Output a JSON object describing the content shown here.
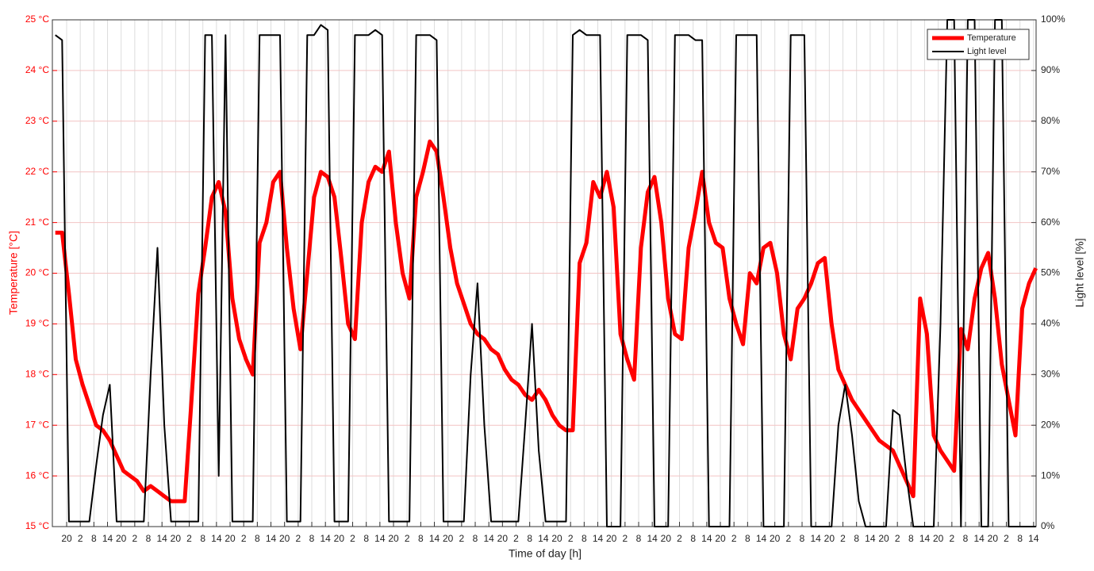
{
  "chart_data": {
    "type": "line",
    "x_label": "Time of day [h]",
    "y_label": "Temperature [°C]",
    "y2_label": "Light level [%]",
    "x": [
      15,
      18,
      21,
      24,
      27,
      30,
      33,
      36,
      39,
      42,
      45,
      48,
      51,
      54,
      57,
      60,
      63,
      66,
      69,
      72,
      75,
      78,
      81,
      84,
      87,
      90,
      93,
      96,
      99,
      102,
      105,
      108,
      111,
      114,
      117,
      120,
      123,
      126,
      129,
      132,
      135,
      138,
      141,
      144,
      147,
      150,
      153,
      156,
      159,
      162,
      165,
      168,
      171,
      174,
      177,
      180,
      183,
      186,
      189,
      192,
      195,
      198,
      201,
      204,
      207,
      210,
      213,
      216,
      219,
      222,
      225,
      228,
      231,
      234,
      237,
      240,
      243,
      246,
      249,
      252,
      255,
      258,
      261,
      264,
      267,
      270,
      273,
      276,
      279,
      282,
      285,
      288,
      291,
      294,
      297,
      300,
      303,
      306,
      309,
      312,
      315,
      318,
      321,
      324,
      327,
      330,
      333,
      336,
      339,
      342,
      345,
      348,
      351,
      354,
      357,
      360,
      363,
      366,
      369,
      372,
      375,
      378,
      381,
      384,
      387,
      390,
      393,
      396,
      399,
      402,
      405,
      408,
      411,
      414,
      417,
      420,
      423,
      426,
      429,
      432,
      435,
      438,
      441,
      444,
      447
    ],
    "series": [
      {
        "name": "Temperature",
        "color": "#ff0000",
        "axis": "y",
        "values": [
          20.8,
          20.8,
          19.6,
          18.3,
          17.8,
          17.4,
          17.0,
          16.9,
          16.7,
          16.4,
          16.1,
          16.0,
          15.9,
          15.7,
          15.8,
          15.7,
          15.6,
          15.5,
          15.5,
          15.5,
          17.5,
          19.6,
          20.5,
          21.5,
          21.8,
          21.2,
          19.5,
          18.7,
          18.3,
          18.0,
          20.6,
          21.0,
          21.8,
          22.0,
          20.5,
          19.3,
          18.5,
          20.0,
          21.5,
          22.0,
          21.9,
          21.5,
          20.3,
          19.0,
          18.7,
          21.0,
          21.8,
          22.1,
          22.0,
          22.4,
          21.0,
          20.0,
          19.5,
          21.5,
          22.0,
          22.6,
          22.4,
          21.5,
          20.5,
          19.8,
          19.4,
          19.0,
          18.8,
          18.7,
          18.5,
          18.4,
          18.1,
          17.9,
          17.8,
          17.6,
          17.5,
          17.7,
          17.5,
          17.2,
          17.0,
          16.9,
          16.9,
          20.2,
          20.6,
          21.8,
          21.5,
          22.0,
          21.3,
          18.8,
          18.3,
          17.9,
          20.5,
          21.6,
          21.9,
          21.0,
          19.5,
          18.8,
          18.7,
          20.5,
          21.2,
          22.0,
          21.0,
          20.6,
          20.5,
          19.5,
          19.0,
          18.6,
          20.0,
          19.8,
          20.5,
          20.6,
          20.0,
          18.8,
          18.3,
          19.3,
          19.5,
          19.8,
          20.2,
          20.3,
          19.0,
          18.1,
          17.8,
          17.5,
          17.3,
          17.1,
          16.9,
          16.7,
          16.6,
          16.5,
          16.2,
          15.9,
          15.6,
          19.5,
          18.8,
          16.8,
          16.5,
          16.3,
          16.1,
          18.9,
          18.5,
          19.5,
          20.1,
          20.4,
          19.5,
          18.2,
          17.5,
          16.8,
          19.3,
          19.8,
          20.1
        ]
      },
      {
        "name": "Light level",
        "color": "#000000",
        "axis": "y2",
        "values": [
          97,
          96,
          1,
          1,
          1,
          1,
          12,
          22,
          28,
          1,
          1,
          1,
          1,
          1,
          30,
          55,
          20,
          1,
          1,
          1,
          1,
          1,
          97,
          97,
          10,
          97,
          1,
          1,
          1,
          1,
          97,
          97,
          97,
          97,
          1,
          1,
          1,
          97,
          97,
          99,
          98,
          1,
          1,
          1,
          97,
          97,
          97,
          98,
          97,
          1,
          1,
          1,
          1,
          97,
          97,
          97,
          96,
          1,
          1,
          1,
          1,
          30,
          48,
          20,
          1,
          1,
          1,
          1,
          1,
          20,
          40,
          15,
          1,
          1,
          1,
          1,
          97,
          98,
          97,
          97,
          97,
          0,
          0,
          0,
          97,
          97,
          97,
          96,
          0,
          0,
          0,
          97,
          97,
          97,
          96,
          96,
          0,
          0,
          0,
          0,
          97,
          97,
          97,
          97,
          0,
          0,
          0,
          0,
          97,
          97,
          97,
          0,
          0,
          0,
          0,
          20,
          28,
          18,
          5,
          0,
          0,
          0,
          0,
          23,
          22,
          10,
          0,
          0,
          0,
          0,
          40,
          100,
          100,
          0,
          100,
          100,
          0,
          0,
          100,
          100,
          0,
          0,
          0,
          0,
          0
        ]
      }
    ],
    "xlim": [
      13.7,
      447.1
    ],
    "ylim": [
      15,
      25
    ],
    "y2lim": [
      0,
      100
    ],
    "xticks": [
      {
        "value": 20,
        "label": "20"
      },
      {
        "value": 26,
        "label": "2"
      },
      {
        "value": 32,
        "label": "8"
      },
      {
        "value": 38,
        "label": "14"
      },
      {
        "value": 44,
        "label": "20"
      },
      {
        "value": 50,
        "label": "2"
      },
      {
        "value": 56,
        "label": "8"
      },
      {
        "value": 62,
        "label": "14"
      },
      {
        "value": 68,
        "label": "20"
      },
      {
        "value": 74,
        "label": "2"
      },
      {
        "value": 80,
        "label": "8"
      },
      {
        "value": 86,
        "label": "14"
      },
      {
        "value": 92,
        "label": "20"
      },
      {
        "value": 98,
        "label": "2"
      },
      {
        "value": 104,
        "label": "8"
      },
      {
        "value": 110,
        "label": "14"
      },
      {
        "value": 116,
        "label": "20"
      },
      {
        "value": 122,
        "label": "2"
      },
      {
        "value": 128,
        "label": "8"
      },
      {
        "value": 134,
        "label": "14"
      },
      {
        "value": 140,
        "label": "20"
      },
      {
        "value": 146,
        "label": "2"
      },
      {
        "value": 152,
        "label": "8"
      },
      {
        "value": 158,
        "label": "14"
      },
      {
        "value": 164,
        "label": "20"
      },
      {
        "value": 170,
        "label": "2"
      },
      {
        "value": 176,
        "label": "8"
      },
      {
        "value": 182,
        "label": "14"
      },
      {
        "value": 188,
        "label": "20"
      },
      {
        "value": 194,
        "label": "2"
      },
      {
        "value": 200,
        "label": "8"
      },
      {
        "value": 206,
        "label": "14"
      },
      {
        "value": 212,
        "label": "20"
      },
      {
        "value": 218,
        "label": "2"
      },
      {
        "value": 224,
        "label": "8"
      },
      {
        "value": 230,
        "label": "14"
      },
      {
        "value": 236,
        "label": "20"
      },
      {
        "value": 242,
        "label": "2"
      },
      {
        "value": 248,
        "label": "8"
      },
      {
        "value": 254,
        "label": "14"
      },
      {
        "value": 260,
        "label": "20"
      },
      {
        "value": 266,
        "label": "2"
      },
      {
        "value": 272,
        "label": "8"
      },
      {
        "value": 278,
        "label": "14"
      },
      {
        "value": 284,
        "label": "20"
      },
      {
        "value": 290,
        "label": "2"
      },
      {
        "value": 296,
        "label": "8"
      },
      {
        "value": 302,
        "label": "14"
      },
      {
        "value": 308,
        "label": "20"
      },
      {
        "value": 314,
        "label": "2"
      },
      {
        "value": 320,
        "label": "8"
      },
      {
        "value": 326,
        "label": "14"
      },
      {
        "value": 332,
        "label": "20"
      },
      {
        "value": 338,
        "label": "2"
      },
      {
        "value": 344,
        "label": "8"
      },
      {
        "value": 350,
        "label": "14"
      },
      {
        "value": 356,
        "label": "20"
      },
      {
        "value": 362,
        "label": "2"
      },
      {
        "value": 368,
        "label": "8"
      },
      {
        "value": 374,
        "label": "14"
      },
      {
        "value": 380,
        "label": "20"
      },
      {
        "value": 386,
        "label": "2"
      },
      {
        "value": 392,
        "label": "8"
      },
      {
        "value": 398,
        "label": "14"
      },
      {
        "value": 404,
        "label": "20"
      },
      {
        "value": 410,
        "label": "2"
      },
      {
        "value": 416,
        "label": "8"
      },
      {
        "value": 422,
        "label": "14"
      },
      {
        "value": 428,
        "label": "20"
      },
      {
        "value": 434,
        "label": "2"
      },
      {
        "value": 440,
        "label": "8"
      },
      {
        "value": 446,
        "label": "14"
      }
    ],
    "yticks": [
      {
        "value": 15,
        "label": "15 °C"
      },
      {
        "value": 16,
        "label": "16 °C"
      },
      {
        "value": 17,
        "label": "17 °C"
      },
      {
        "value": 18,
        "label": "18 °C"
      },
      {
        "value": 19,
        "label": "19 °C"
      },
      {
        "value": 20,
        "label": "20 °C"
      },
      {
        "value": 21,
        "label": "21 °C"
      },
      {
        "value": 22,
        "label": "22 °C"
      },
      {
        "value": 23,
        "label": "23 °C"
      },
      {
        "value": 24,
        "label": "24 °C"
      },
      {
        "value": 25,
        "label": "25 °C"
      }
    ],
    "y2ticks": [
      {
        "value": 0,
        "label": "0%"
      },
      {
        "value": 10,
        "label": "10%"
      },
      {
        "value": 20,
        "label": "20%"
      },
      {
        "value": 30,
        "label": "30%"
      },
      {
        "value": 40,
        "label": "40%"
      },
      {
        "value": 50,
        "label": "50%"
      },
      {
        "value": 60,
        "label": "60%"
      },
      {
        "value": 70,
        "label": "70%"
      },
      {
        "value": 80,
        "label": "80%"
      },
      {
        "value": 90,
        "label": "90%"
      },
      {
        "value": 100,
        "label": "100%"
      }
    ],
    "grid": true,
    "legend": "northeast",
    "y_color": "#ff0000"
  }
}
